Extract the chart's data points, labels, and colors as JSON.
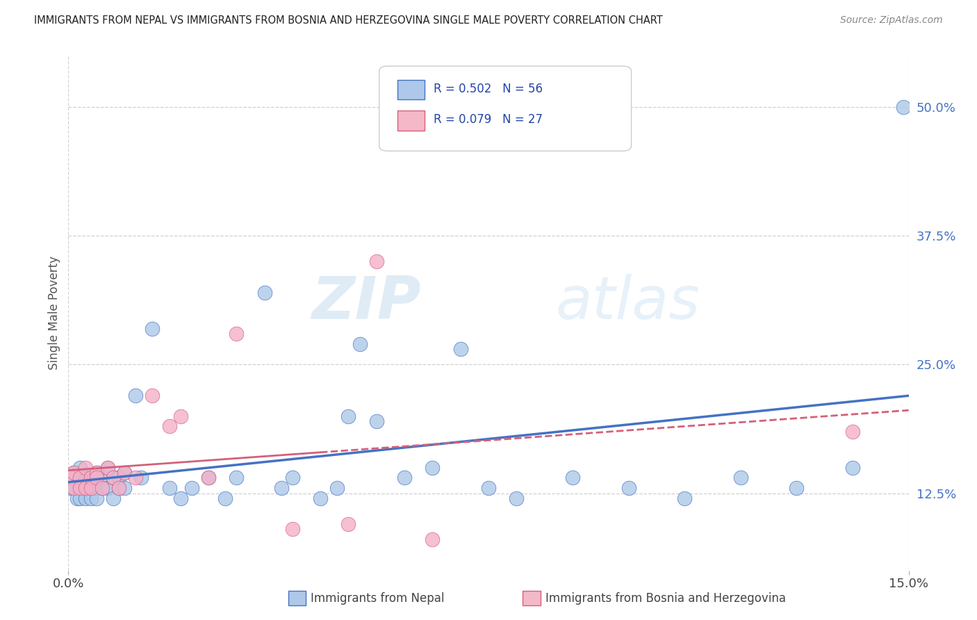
{
  "title": "IMMIGRANTS FROM NEPAL VS IMMIGRANTS FROM BOSNIA AND HERZEGOVINA SINGLE MALE POVERTY CORRELATION CHART",
  "source": "Source: ZipAtlas.com",
  "ylabel": "Single Male Poverty",
  "xlim": [
    0.0,
    0.15
  ],
  "ylim": [
    0.05,
    0.55
  ],
  "yticks": [
    0.125,
    0.25,
    0.375,
    0.5
  ],
  "ytick_labels": [
    "12.5%",
    "25.0%",
    "37.5%",
    "50.0%"
  ],
  "xtick_vals": [
    0.0,
    0.15
  ],
  "xtick_labels": [
    "0.0%",
    "15.0%"
  ],
  "legend_r1": "R = 0.502",
  "legend_n1": "N = 56",
  "legend_r2": "R = 0.079",
  "legend_n2": "N = 27",
  "legend_color1": "#adc8e8",
  "legend_color2": "#f4b8c8",
  "line_color_nepal": "#4472c4",
  "line_color_bosnia": "#d4607a",
  "background_color": "#ffffff",
  "scatter_color_nepal": "#adc8e8",
  "scatter_color_bosnia": "#f4b0c8",
  "nepal_x": [
    0.0005,
    0.001,
    0.001,
    0.0015,
    0.002,
    0.002,
    0.002,
    0.002,
    0.003,
    0.003,
    0.003,
    0.004,
    0.004,
    0.004,
    0.005,
    0.005,
    0.005,
    0.006,
    0.006,
    0.007,
    0.007,
    0.008,
    0.008,
    0.009,
    0.009,
    0.01,
    0.01,
    0.012,
    0.013,
    0.015,
    0.018,
    0.02,
    0.022,
    0.025,
    0.028,
    0.03,
    0.035,
    0.038,
    0.04,
    0.045,
    0.048,
    0.05,
    0.055,
    0.06,
    0.065,
    0.07,
    0.075,
    0.08,
    0.09,
    0.1,
    0.11,
    0.12,
    0.13,
    0.14,
    0.149,
    0.052
  ],
  "nepal_y": [
    0.13,
    0.145,
    0.13,
    0.12,
    0.14,
    0.13,
    0.15,
    0.12,
    0.135,
    0.14,
    0.12,
    0.13,
    0.14,
    0.12,
    0.145,
    0.13,
    0.12,
    0.14,
    0.13,
    0.15,
    0.13,
    0.14,
    0.12,
    0.14,
    0.13,
    0.145,
    0.13,
    0.22,
    0.14,
    0.285,
    0.13,
    0.12,
    0.13,
    0.14,
    0.12,
    0.14,
    0.32,
    0.13,
    0.14,
    0.12,
    0.13,
    0.2,
    0.195,
    0.14,
    0.15,
    0.265,
    0.13,
    0.12,
    0.14,
    0.13,
    0.12,
    0.14,
    0.13,
    0.15,
    0.5,
    0.27
  ],
  "bosnia_x": [
    0.0005,
    0.001,
    0.001,
    0.002,
    0.002,
    0.003,
    0.003,
    0.004,
    0.004,
    0.005,
    0.005,
    0.006,
    0.007,
    0.008,
    0.009,
    0.01,
    0.012,
    0.015,
    0.018,
    0.02,
    0.025,
    0.03,
    0.04,
    0.05,
    0.055,
    0.065,
    0.14
  ],
  "bosnia_y": [
    0.14,
    0.13,
    0.145,
    0.14,
    0.13,
    0.15,
    0.13,
    0.14,
    0.13,
    0.145,
    0.14,
    0.13,
    0.15,
    0.14,
    0.13,
    0.145,
    0.14,
    0.22,
    0.19,
    0.2,
    0.14,
    0.28,
    0.09,
    0.095,
    0.35,
    0.08,
    0.185
  ],
  "watermark_text": "ZIPatlas",
  "legend1_label": "Immigrants from Nepal",
  "legend2_label": "Immigrants from Bosnia and Herzegovina"
}
